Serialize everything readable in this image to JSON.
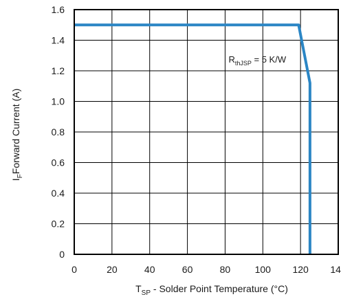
{
  "chart_data": {
    "type": "line",
    "xlabel": {
      "main": "T",
      "sub": "SP",
      "rest": " - Solder Point Temperature (°C)"
    },
    "ylabel": {
      "main": "I",
      "sub": "F",
      "rest": "Forward Current (A)"
    },
    "xlim": [
      0,
      140
    ],
    "ylim": [
      0,
      1.6
    ],
    "x_ticks": [
      "0",
      "20",
      "40",
      "60",
      "80",
      "100",
      "120",
      "140"
    ],
    "y_ticks": [
      "0",
      "0.2",
      "0.4",
      "0.6",
      "0.8",
      "1.0",
      "1.2",
      "1.4",
      "1.6"
    ],
    "grid": true,
    "series": [
      {
        "x": [
          0,
          119,
          125,
          125
        ],
        "y": [
          1.5,
          1.5,
          1.12,
          0
        ],
        "color": "#2b86c5"
      }
    ],
    "annotation": {
      "main": "R",
      "sub": "thJSP",
      "rest": " = 5 K/W",
      "x": 100,
      "y": 1.28
    }
  }
}
